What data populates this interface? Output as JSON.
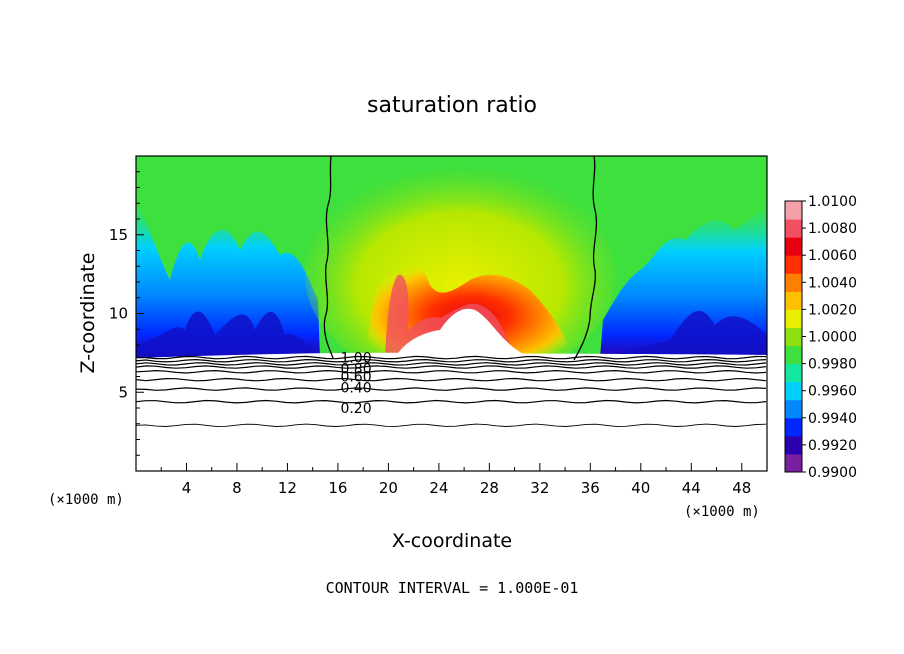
{
  "chart_data": {
    "type": "heatmap",
    "title": "saturation ratio",
    "xlabel": "X-coordinate",
    "ylabel": "Z-coordinate",
    "x_unit": "(×1000 m)",
    "y_unit": "(×1000 m)",
    "xlim": [
      0,
      50
    ],
    "ylim": [
      0,
      20
    ],
    "x_ticks": [
      4,
      8,
      12,
      16,
      20,
      24,
      28,
      32,
      36,
      40,
      44,
      48
    ],
    "y_ticks": [
      5,
      10,
      15
    ],
    "colorbar": {
      "min": 0.99,
      "max": 1.01,
      "labels": [
        "1.0100",
        "1.0080",
        "1.0060",
        "1.0040",
        "1.0020",
        "1.0000",
        "0.9980",
        "0.9960",
        "0.9940",
        "0.9920",
        "0.9900"
      ],
      "colors": [
        "#7a1fa0",
        "#2a00b0",
        "#0028ff",
        "#0088ff",
        "#00d0ff",
        "#14e8a0",
        "#3ee03e",
        "#8ee010",
        "#e8f000",
        "#ffc000",
        "#ff8000",
        "#ff3000",
        "#e80010",
        "#f05060",
        "#f4a0a8"
      ]
    },
    "contour_lines": {
      "labels": [
        "1.00",
        "0.80",
        "0.60",
        "0.40",
        "0.20"
      ],
      "levels": [
        0.2,
        0.4,
        0.6,
        0.8,
        1.0
      ],
      "z_by_level": [
        {
          "level": 0.0,
          "z": 2.9
        },
        {
          "level": 0.2,
          "z": 4.4
        },
        {
          "level": 0.4,
          "z": 5.2
        },
        {
          "level": 0.5,
          "z": 5.8
        },
        {
          "level": 0.6,
          "z": 6.3
        },
        {
          "level": 0.7,
          "z": 6.6
        },
        {
          "level": 0.8,
          "z": 6.8
        },
        {
          "level": 0.9,
          "z": 7.0
        },
        {
          "level": 1.0,
          "z": 7.2
        }
      ]
    },
    "footnote": "CONTOUR INTERVAL = 1.000E-01"
  }
}
